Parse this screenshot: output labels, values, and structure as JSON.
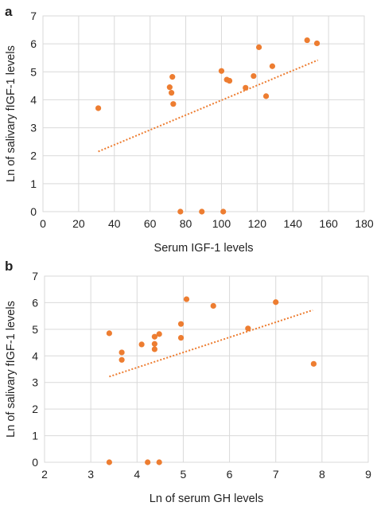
{
  "figure": {
    "panels": [
      "a",
      "b"
    ]
  },
  "style": {
    "series_color": "#ed7d31",
    "grid_color": "#d9d9d9",
    "text_color": "#222222"
  },
  "chart_data": [
    {
      "panel": "a",
      "type": "scatter",
      "xlabel": "Serum IGF-1 levels",
      "ylabel": "Ln of salivary fIGF-1 levels",
      "xlim": [
        0,
        180
      ],
      "ylim": [
        0,
        7
      ],
      "xticks": [
        0,
        20,
        40,
        60,
        80,
        100,
        120,
        140,
        160,
        180
      ],
      "yticks": [
        0,
        1,
        2,
        3,
        4,
        5,
        6,
        7
      ],
      "grid": true,
      "trendline": {
        "type": "linear",
        "style": "dotted",
        "x": [
          31,
          154
        ],
        "y": [
          2.15,
          5.42
        ]
      },
      "points": [
        {
          "x": 31,
          "y": 3.7
        },
        {
          "x": 71,
          "y": 4.45
        },
        {
          "x": 72,
          "y": 4.25
        },
        {
          "x": 72.5,
          "y": 4.82
        },
        {
          "x": 73,
          "y": 3.85
        },
        {
          "x": 77,
          "y": 0
        },
        {
          "x": 89,
          "y": 0
        },
        {
          "x": 100,
          "y": 5.03
        },
        {
          "x": 101,
          "y": 0
        },
        {
          "x": 103,
          "y": 4.72
        },
        {
          "x": 104.5,
          "y": 4.68
        },
        {
          "x": 113.5,
          "y": 4.43
        },
        {
          "x": 118,
          "y": 4.85
        },
        {
          "x": 121,
          "y": 5.88
        },
        {
          "x": 125,
          "y": 4.13
        },
        {
          "x": 128.5,
          "y": 5.2
        },
        {
          "x": 148,
          "y": 6.13
        },
        {
          "x": 153.5,
          "y": 6.02
        }
      ]
    },
    {
      "panel": "b",
      "type": "scatter",
      "xlabel": "Ln of serum GH levels",
      "ylabel": "Ln of salivary fIGF-1 levels",
      "xlim": [
        2,
        9
      ],
      "ylim": [
        0,
        7
      ],
      "xticks": [
        2,
        3,
        4,
        5,
        6,
        7,
        8,
        9
      ],
      "yticks": [
        0,
        1,
        2,
        3,
        4,
        5,
        6,
        7
      ],
      "grid": true,
      "trendline": {
        "type": "linear",
        "style": "dotted",
        "x": [
          3.4,
          7.8
        ],
        "y": [
          3.22,
          5.72
        ]
      },
      "points": [
        {
          "x": 3.4,
          "y": 4.85
        },
        {
          "x": 3.4,
          "y": 0
        },
        {
          "x": 3.67,
          "y": 4.13
        },
        {
          "x": 3.67,
          "y": 3.85
        },
        {
          "x": 4.1,
          "y": 4.43
        },
        {
          "x": 4.23,
          "y": 0
        },
        {
          "x": 4.38,
          "y": 4.72
        },
        {
          "x": 4.38,
          "y": 4.45
        },
        {
          "x": 4.38,
          "y": 4.25
        },
        {
          "x": 4.48,
          "y": 4.82
        },
        {
          "x": 4.48,
          "y": 0
        },
        {
          "x": 4.95,
          "y": 5.2
        },
        {
          "x": 4.95,
          "y": 4.68
        },
        {
          "x": 5.07,
          "y": 6.13
        },
        {
          "x": 5.65,
          "y": 5.88
        },
        {
          "x": 6.4,
          "y": 5.03
        },
        {
          "x": 7.0,
          "y": 6.02
        },
        {
          "x": 7.82,
          "y": 3.7
        }
      ]
    }
  ]
}
